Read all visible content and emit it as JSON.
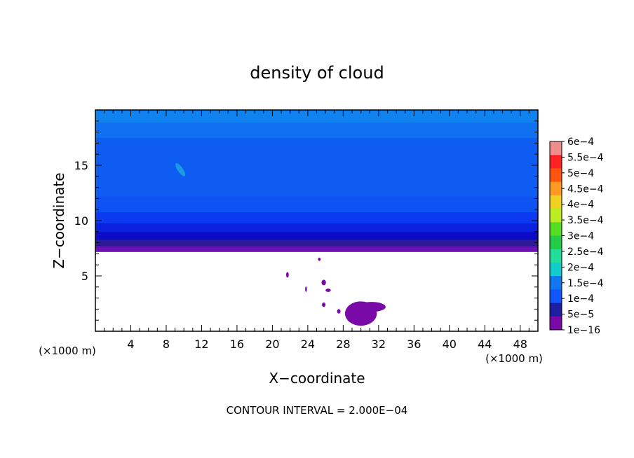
{
  "chart_data": {
    "type": "heatmap",
    "title": "density of cloud",
    "xlabel": "X−coordinate",
    "ylabel": "Z−coordinate",
    "x_unit_left": "(×1000 m)",
    "x_unit_right": "(×1000 m)",
    "xlim": [
      0,
      50
    ],
    "ylim": [
      0,
      20
    ],
    "x_ticks": [
      4,
      8,
      12,
      16,
      20,
      24,
      28,
      32,
      36,
      40,
      44,
      48
    ],
    "x_tick_labels": [
      "4",
      "8",
      "12",
      "16",
      "20",
      "24",
      "28",
      "32",
      "36",
      "40",
      "44",
      "48"
    ],
    "y_ticks": [
      5,
      10,
      15
    ],
    "y_tick_labels": [
      "5",
      "10",
      "15"
    ],
    "colorbar_labels": [
      "6e−4",
      "5.5e−4",
      "5e−4",
      "4.5e−4",
      "4e−4",
      "3.5e−4",
      "3e−4",
      "2.5e−4",
      "2e−4",
      "1.5e−4",
      "1e−4",
      "5e−5",
      "1e−16"
    ],
    "colorbar_colors": [
      "#f08c8c",
      "#ff2222",
      "#ff5511",
      "#ff9922",
      "#f0d020",
      "#bbee22",
      "#55dd22",
      "#22cc44",
      "#22dd99",
      "#11cccc",
      "#1177ee",
      "#1155ff",
      "#1e1ea0",
      "#7a0aa8"
    ],
    "bands": [
      {
        "z": [
          7.2,
          7.7
        ],
        "color": "#6a12b4"
      },
      {
        "z": [
          7.7,
          8.3
        ],
        "color": "#2a1a96"
      },
      {
        "z": [
          8.3,
          9.0
        ],
        "color": "#0c0cc8"
      },
      {
        "z": [
          9.0,
          9.8
        ],
        "color": "#0a22e0"
      },
      {
        "z": [
          9.8,
          10.8
        ],
        "color": "#0b3af2"
      },
      {
        "z": [
          10.8,
          12.2
        ],
        "color": "#0e52f4"
      },
      {
        "z": [
          12.2,
          17.5
        ],
        "color": "#0e5cf2"
      },
      {
        "z": [
          17.5,
          18.9
        ],
        "color": "#1070f2"
      },
      {
        "z": [
          18.9,
          20.0
        ],
        "color": "#1082f0"
      }
    ],
    "blobs": [
      {
        "x": 30.0,
        "z": 1.6,
        "rx": 1.8,
        "rz": 1.1,
        "color": "#7a0aa8"
      },
      {
        "x": 31.2,
        "z": 2.2,
        "rx": 1.6,
        "rz": 0.45,
        "color": "#7a0aa8"
      },
      {
        "x": 25.8,
        "z": 4.4,
        "rx": 0.25,
        "rz": 0.25,
        "color": "#7a0aa8"
      },
      {
        "x": 26.3,
        "z": 3.7,
        "rx": 0.3,
        "rz": 0.15,
        "color": "#7a0aa8"
      },
      {
        "x": 25.8,
        "z": 2.4,
        "rx": 0.2,
        "rz": 0.2,
        "color": "#7a0aa8"
      },
      {
        "x": 27.5,
        "z": 1.8,
        "rx": 0.2,
        "rz": 0.2,
        "color": "#7a0aa8"
      },
      {
        "x": 21.7,
        "z": 5.1,
        "rx": 0.15,
        "rz": 0.25,
        "color": "#7a0aa8"
      },
      {
        "x": 23.8,
        "z": 3.8,
        "rx": 0.1,
        "rz": 0.25,
        "color": "#7a0aa8"
      },
      {
        "x": 25.3,
        "z": 6.5,
        "rx": 0.15,
        "rz": 0.15,
        "color": "#7a0aa8"
      },
      {
        "x": 9.6,
        "z": 14.6,
        "rx": 0.3,
        "rz": 0.7,
        "color": "#1a9ae0"
      }
    ]
  },
  "footer": {
    "contour_interval": "CONTOUR INTERVAL = 2.000E−04"
  }
}
